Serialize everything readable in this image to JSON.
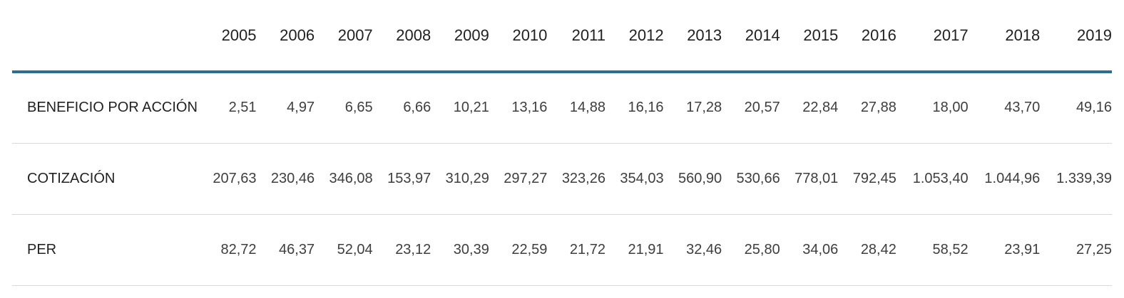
{
  "chart_data": {
    "type": "table",
    "years": [
      "2005",
      "2006",
      "2007",
      "2008",
      "2009",
      "2010",
      "2011",
      "2012",
      "2013",
      "2014",
      "2015",
      "2016",
      "2017",
      "2018",
      "2019"
    ],
    "rows": [
      {
        "label": "BENEFICIO POR ACCIÓN",
        "values": [
          "2,51",
          "4,97",
          "6,65",
          "6,66",
          "10,21",
          "13,16",
          "14,88",
          "16,16",
          "17,28",
          "20,57",
          "22,84",
          "27,88",
          "18,00",
          "43,70",
          "49,16"
        ]
      },
      {
        "label": "COTIZACIÓN",
        "values": [
          "207,63",
          "230,46",
          "346,08",
          "153,97",
          "310,29",
          "297,27",
          "323,26",
          "354,03",
          "560,90",
          "530,66",
          "778,01",
          "792,45",
          "1.053,40",
          "1.044,96",
          "1.339,39"
        ]
      },
      {
        "label": "PER",
        "values": [
          "82,72",
          "46,37",
          "52,04",
          "23,12",
          "30,39",
          "22,59",
          "21,72",
          "21,91",
          "32,46",
          "25,80",
          "34,06",
          "28,42",
          "58,52",
          "23,91",
          "27,25"
        ]
      }
    ]
  },
  "colors": {
    "header_rule": "#2e6d91",
    "row_divider": "#d9d9d9",
    "heading_text": "#212121",
    "value_text": "#3e3e3e"
  }
}
